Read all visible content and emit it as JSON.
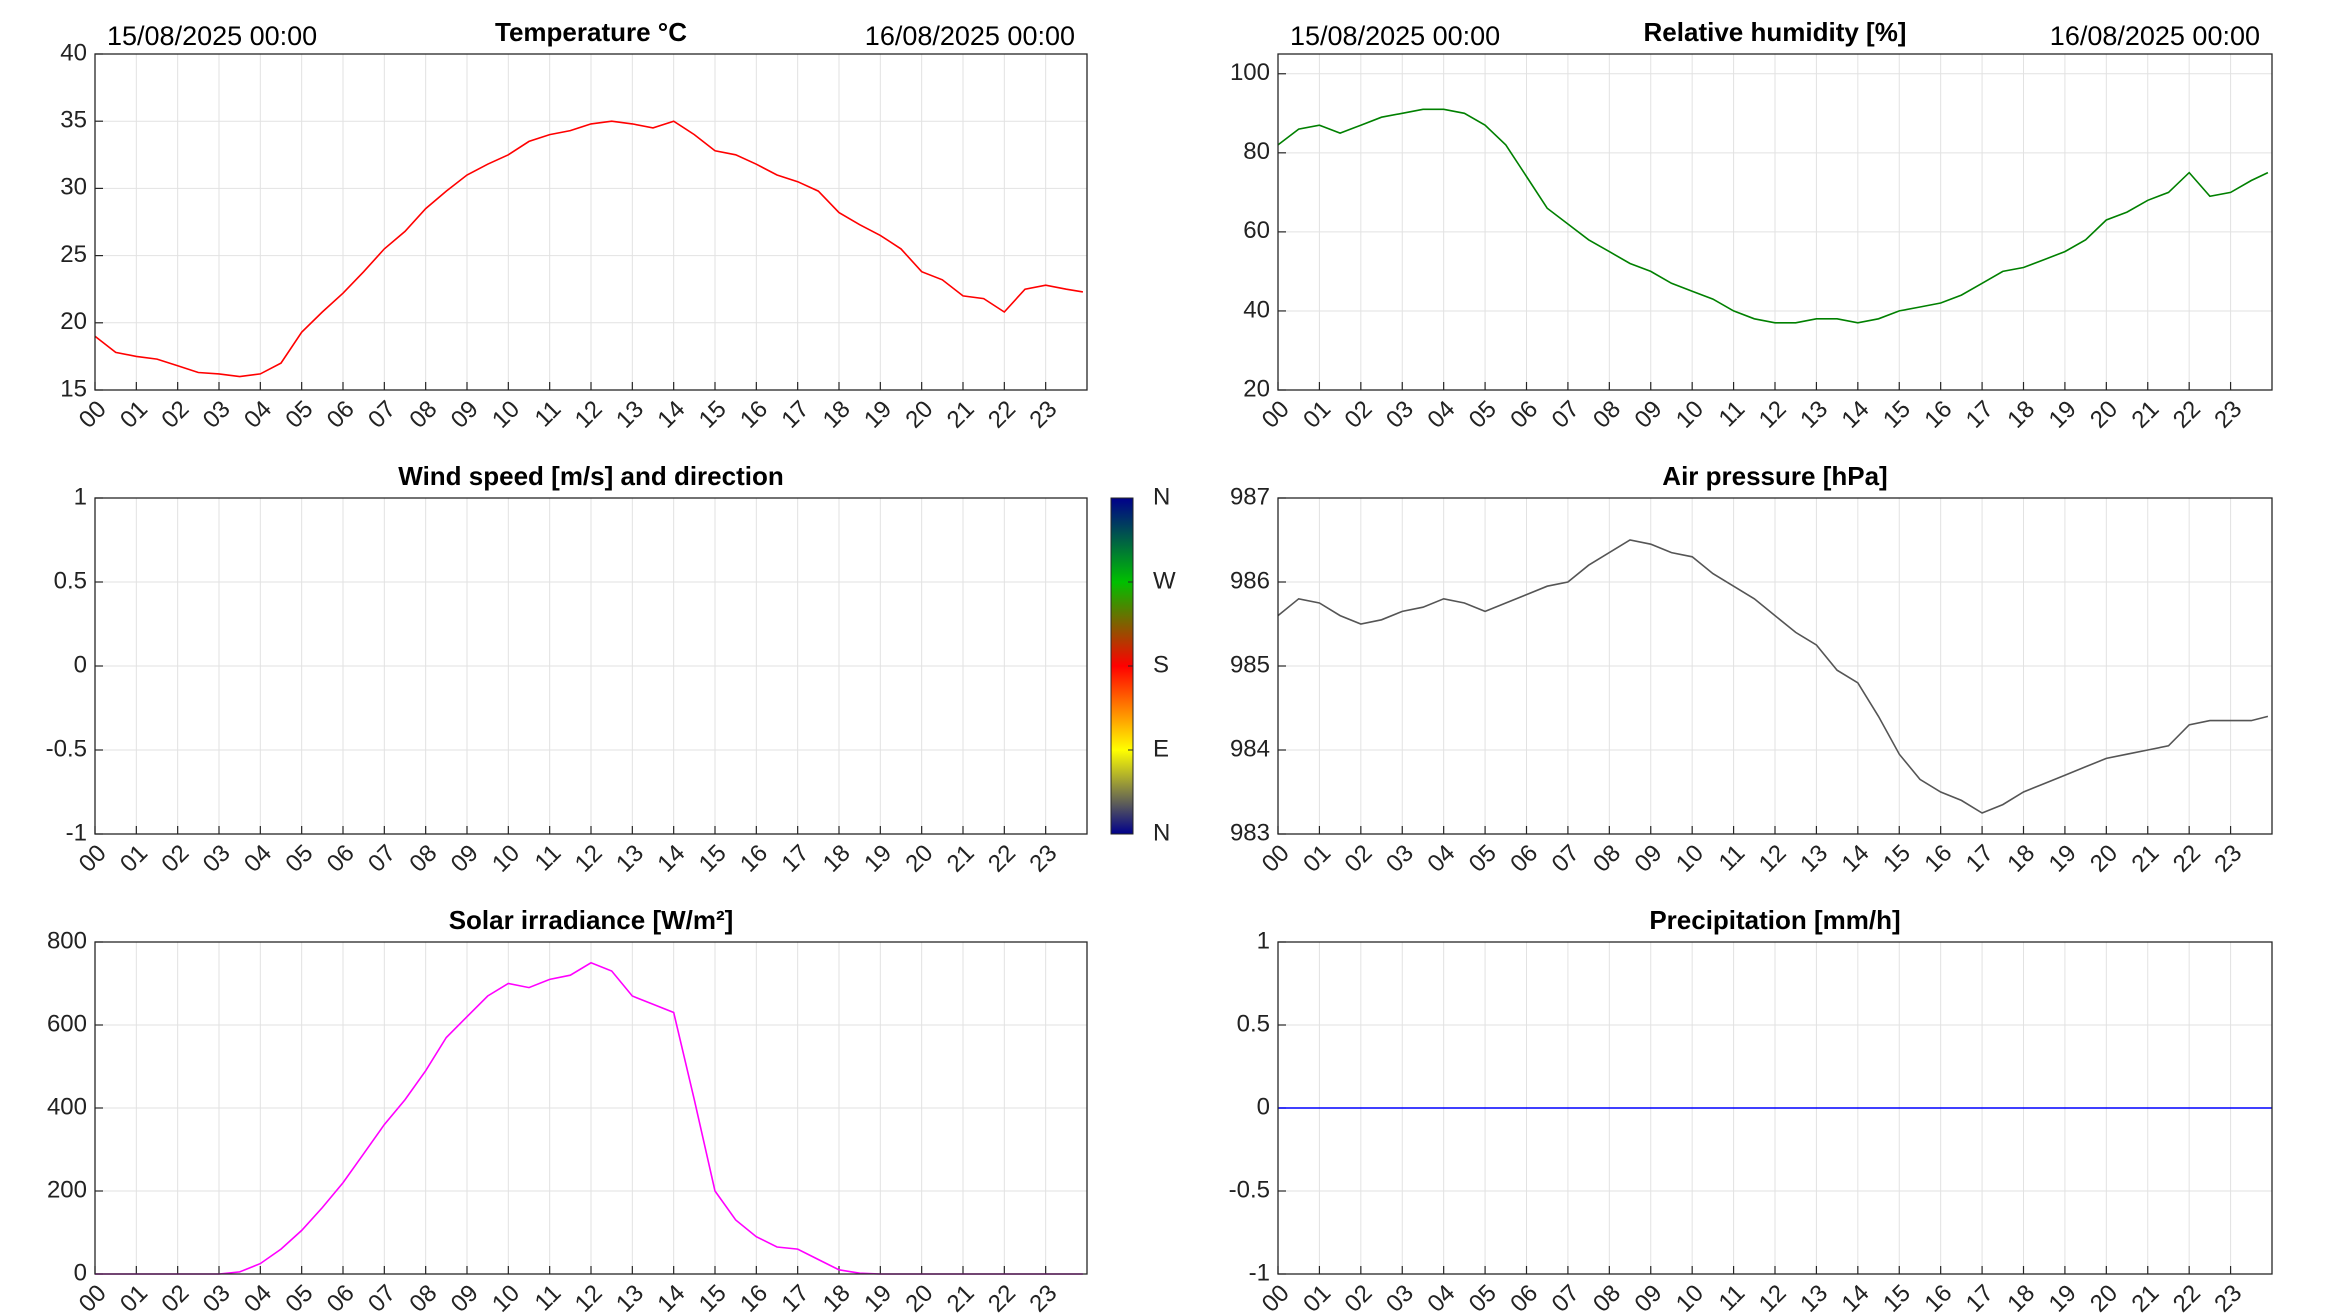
{
  "chart_data": [
    {
      "type": "line",
      "title": "Temperature °C",
      "annotations": [
        "15/08/2025 00:00",
        "16/08/2025 00:00"
      ],
      "color": "#ff0000",
      "x": [
        0,
        0.5,
        1,
        1.5,
        2,
        2.5,
        3,
        3.5,
        4,
        4.5,
        5,
        5.5,
        6,
        6.5,
        7,
        7.5,
        8,
        8.5,
        9,
        9.5,
        10,
        10.5,
        11,
        11.5,
        12,
        12.5,
        13,
        13.5,
        14,
        14.5,
        15,
        15.5,
        16,
        16.5,
        17,
        17.5,
        18,
        18.5,
        19,
        19.5,
        20,
        20.5,
        21,
        21.5,
        22,
        22.5,
        23,
        23.5,
        23.9
      ],
      "values": [
        19,
        17.8,
        17.5,
        17.3,
        16.8,
        16.3,
        16.2,
        16.0,
        16.2,
        17,
        19.3,
        20.8,
        22.2,
        23.8,
        25.5,
        26.8,
        28.5,
        29.8,
        31,
        31.8,
        32.5,
        33.5,
        34,
        34.3,
        34.8,
        35,
        34.8,
        34.5,
        35,
        34,
        32.8,
        32.5,
        31.8,
        31,
        30.5,
        29.8,
        28.2,
        27.3,
        26.5,
        25.5,
        23.8,
        23.2,
        22,
        21.8,
        20.8,
        22.5,
        22.8,
        22.5,
        22.3
      ],
      "xlim": [
        0,
        24
      ],
      "ylim": [
        15,
        40
      ],
      "yticks": [
        15,
        20,
        25,
        30,
        35,
        40
      ],
      "grid": true,
      "xticks": [
        {
          "value": 0,
          "label": "00"
        },
        {
          "value": 1,
          "label": "01"
        },
        {
          "value": 2,
          "label": "02"
        },
        {
          "value": 3,
          "label": "03"
        },
        {
          "value": 4,
          "label": "04"
        },
        {
          "value": 5,
          "label": "05"
        },
        {
          "value": 6,
          "label": "06"
        },
        {
          "value": 7,
          "label": "07"
        },
        {
          "value": 8,
          "label": "08"
        },
        {
          "value": 9,
          "label": "09"
        },
        {
          "value": 10,
          "label": "10"
        },
        {
          "value": 11,
          "label": "11"
        },
        {
          "value": 12,
          "label": "12"
        },
        {
          "value": 13,
          "label": "13"
        },
        {
          "value": 14,
          "label": "14"
        },
        {
          "value": 15,
          "label": "15"
        },
        {
          "value": 16,
          "label": "16"
        },
        {
          "value": 17,
          "label": "17"
        },
        {
          "value": 18,
          "label": "18"
        },
        {
          "value": 19,
          "label": "19"
        },
        {
          "value": 20,
          "label": "20"
        },
        {
          "value": 21,
          "label": "21"
        },
        {
          "value": 22,
          "label": "22"
        },
        {
          "value": 23,
          "label": "23"
        }
      ]
    },
    {
      "type": "line",
      "title": "Relative humidity [%]",
      "annotations": [
        "15/08/2025 00:00",
        "16/08/2025 00:00"
      ],
      "color": "#008000",
      "x": [
        0,
        0.5,
        1,
        1.5,
        2,
        2.5,
        3,
        3.5,
        4,
        4.5,
        5,
        5.5,
        6,
        6.5,
        7,
        7.5,
        8,
        8.5,
        9,
        9.5,
        10,
        10.5,
        11,
        11.5,
        12,
        12.5,
        13,
        13.5,
        14,
        14.5,
        15,
        15.5,
        16,
        16.5,
        17,
        17.5,
        18,
        18.5,
        19,
        19.5,
        20,
        20.5,
        21,
        21.5,
        22,
        22.5,
        23,
        23.5,
        23.9
      ],
      "values": [
        82,
        86,
        87,
        85,
        87,
        89,
        90,
        91,
        91,
        90,
        87,
        82,
        74,
        66,
        62,
        58,
        55,
        52,
        50,
        47,
        45,
        43,
        40,
        38,
        37,
        37,
        38,
        38,
        37,
        38,
        40,
        41,
        42,
        44,
        47,
        50,
        51,
        53,
        55,
        58,
        63,
        65,
        68,
        70,
        75,
        69,
        70,
        73,
        75
      ],
      "xlim": [
        0,
        24
      ],
      "ylim": [
        20,
        105
      ],
      "yticks": [
        20,
        40,
        60,
        80,
        100
      ],
      "grid": true,
      "xticks": [
        {
          "value": 0,
          "label": "00"
        },
        {
          "value": 1,
          "label": "01"
        },
        {
          "value": 2,
          "label": "02"
        },
        {
          "value": 3,
          "label": "03"
        },
        {
          "value": 4,
          "label": "04"
        },
        {
          "value": 5,
          "label": "05"
        },
        {
          "value": 6,
          "label": "06"
        },
        {
          "value": 7,
          "label": "07"
        },
        {
          "value": 8,
          "label": "08"
        },
        {
          "value": 9,
          "label": "09"
        },
        {
          "value": 10,
          "label": "10"
        },
        {
          "value": 11,
          "label": "11"
        },
        {
          "value": 12,
          "label": "12"
        },
        {
          "value": 13,
          "label": "13"
        },
        {
          "value": 14,
          "label": "14"
        },
        {
          "value": 15,
          "label": "15"
        },
        {
          "value": 16,
          "label": "16"
        },
        {
          "value": 17,
          "label": "17"
        },
        {
          "value": 18,
          "label": "18"
        },
        {
          "value": 19,
          "label": "19"
        },
        {
          "value": 20,
          "label": "20"
        },
        {
          "value": 21,
          "label": "21"
        },
        {
          "value": 22,
          "label": "22"
        },
        {
          "value": 23,
          "label": "23"
        }
      ]
    },
    {
      "type": "line",
      "title": "Wind speed [m/s] and direction",
      "color": "#000000",
      "x": [],
      "values": [],
      "xlim": [
        0,
        24
      ],
      "ylim": [
        -1,
        1
      ],
      "yticks": [
        -1,
        -0.5,
        0,
        0.5,
        1
      ],
      "grid": true,
      "colorbar": {
        "labels": [
          "N",
          "E",
          "S",
          "W",
          "N"
        ],
        "colors": [
          "#00008b",
          "#ffff00",
          "#ff0000",
          "#00c000",
          "#00008b"
        ]
      },
      "xticks": [
        {
          "value": 0,
          "label": "00"
        },
        {
          "value": 1,
          "label": "01"
        },
        {
          "value": 2,
          "label": "02"
        },
        {
          "value": 3,
          "label": "03"
        },
        {
          "value": 4,
          "label": "04"
        },
        {
          "value": 5,
          "label": "05"
        },
        {
          "value": 6,
          "label": "06"
        },
        {
          "value": 7,
          "label": "07"
        },
        {
          "value": 8,
          "label": "08"
        },
        {
          "value": 9,
          "label": "09"
        },
        {
          "value": 10,
          "label": "10"
        },
        {
          "value": 11,
          "label": "11"
        },
        {
          "value": 12,
          "label": "12"
        },
        {
          "value": 13,
          "label": "13"
        },
        {
          "value": 14,
          "label": "14"
        },
        {
          "value": 15,
          "label": "15"
        },
        {
          "value": 16,
          "label": "16"
        },
        {
          "value": 17,
          "label": "17"
        },
        {
          "value": 18,
          "label": "18"
        },
        {
          "value": 19,
          "label": "19"
        },
        {
          "value": 20,
          "label": "20"
        },
        {
          "value": 21,
          "label": "21"
        },
        {
          "value": 22,
          "label": "22"
        },
        {
          "value": 23,
          "label": "23"
        }
      ]
    },
    {
      "type": "line",
      "title": "Air pressure [hPa]",
      "color": "#555555",
      "x": [
        0,
        0.5,
        1,
        1.5,
        2,
        2.5,
        3,
        3.5,
        4,
        4.5,
        5,
        5.5,
        6,
        6.5,
        7,
        7.5,
        8,
        8.5,
        9,
        9.5,
        10,
        10.5,
        11,
        11.5,
        12,
        12.5,
        13,
        13.5,
        14,
        14.5,
        15,
        15.5,
        16,
        16.5,
        17,
        17.5,
        18,
        18.5,
        19,
        19.5,
        20,
        20.5,
        21,
        21.5,
        22,
        22.5,
        23,
        23.5,
        23.9
      ],
      "values": [
        985.6,
        985.8,
        985.75,
        985.6,
        985.5,
        985.55,
        985.65,
        985.7,
        985.8,
        985.75,
        985.65,
        985.75,
        985.85,
        985.95,
        986.0,
        986.2,
        986.35,
        986.5,
        986.45,
        986.35,
        986.3,
        986.1,
        985.95,
        985.8,
        985.6,
        985.4,
        985.25,
        984.95,
        984.8,
        984.4,
        983.95,
        983.65,
        983.5,
        983.4,
        983.25,
        983.35,
        983.5,
        983.6,
        983.7,
        983.8,
        983.9,
        983.95,
        984.0,
        984.05,
        984.3,
        984.35,
        984.35,
        984.35,
        984.4
      ],
      "xlim": [
        0,
        24
      ],
      "ylim": [
        983,
        987
      ],
      "yticks": [
        983,
        984,
        985,
        986,
        987
      ],
      "grid": true,
      "xticks": [
        {
          "value": 0,
          "label": "00"
        },
        {
          "value": 1,
          "label": "01"
        },
        {
          "value": 2,
          "label": "02"
        },
        {
          "value": 3,
          "label": "03"
        },
        {
          "value": 4,
          "label": "04"
        },
        {
          "value": 5,
          "label": "05"
        },
        {
          "value": 6,
          "label": "06"
        },
        {
          "value": 7,
          "label": "07"
        },
        {
          "value": 8,
          "label": "08"
        },
        {
          "value": 9,
          "label": "09"
        },
        {
          "value": 10,
          "label": "10"
        },
        {
          "value": 11,
          "label": "11"
        },
        {
          "value": 12,
          "label": "12"
        },
        {
          "value": 13,
          "label": "13"
        },
        {
          "value": 14,
          "label": "14"
        },
        {
          "value": 15,
          "label": "15"
        },
        {
          "value": 16,
          "label": "16"
        },
        {
          "value": 17,
          "label": "17"
        },
        {
          "value": 18,
          "label": "18"
        },
        {
          "value": 19,
          "label": "19"
        },
        {
          "value": 20,
          "label": "20"
        },
        {
          "value": 21,
          "label": "21"
        },
        {
          "value": 22,
          "label": "22"
        },
        {
          "value": 23,
          "label": "23"
        }
      ]
    },
    {
      "type": "line",
      "title": "Solar irradiance [W/m²]",
      "color": "#ff00ff",
      "x": [
        0,
        0.5,
        1,
        1.5,
        2,
        2.5,
        3,
        3.5,
        4,
        4.5,
        5,
        5.5,
        6,
        6.5,
        7,
        7.5,
        8,
        8.5,
        9,
        9.5,
        10,
        10.5,
        11,
        11.5,
        12,
        12.5,
        13,
        13.5,
        14,
        14.5,
        15,
        15.5,
        16,
        16.5,
        17,
        17.5,
        18,
        18.5,
        19,
        19.5,
        20,
        20.5,
        21,
        21.5,
        22,
        22.5,
        23,
        23.5,
        23.9
      ],
      "values": [
        0,
        0,
        0,
        0,
        0,
        0,
        0,
        5,
        25,
        60,
        105,
        160,
        220,
        290,
        360,
        420,
        490,
        570,
        620,
        670,
        700,
        690,
        710,
        720,
        750,
        730,
        670,
        650,
        630,
        420,
        200,
        130,
        90,
        65,
        60,
        35,
        10,
        2,
        0,
        0,
        0,
        0,
        0,
        0,
        0,
        0,
        0,
        0,
        0
      ],
      "xlim": [
        0,
        24
      ],
      "ylim": [
        0,
        800
      ],
      "yticks": [
        0,
        200,
        400,
        600,
        800
      ],
      "grid": true,
      "xticks": [
        {
          "value": 0,
          "label": "00"
        },
        {
          "value": 1,
          "label": "01"
        },
        {
          "value": 2,
          "label": "02"
        },
        {
          "value": 3,
          "label": "03"
        },
        {
          "value": 4,
          "label": "04"
        },
        {
          "value": 5,
          "label": "05"
        },
        {
          "value": 6,
          "label": "06"
        },
        {
          "value": 7,
          "label": "07"
        },
        {
          "value": 8,
          "label": "08"
        },
        {
          "value": 9,
          "label": "09"
        },
        {
          "value": 10,
          "label": "10"
        },
        {
          "value": 11,
          "label": "11"
        },
        {
          "value": 12,
          "label": "12"
        },
        {
          "value": 13,
          "label": "13"
        },
        {
          "value": 14,
          "label": "14"
        },
        {
          "value": 15,
          "label": "15"
        },
        {
          "value": 16,
          "label": "16"
        },
        {
          "value": 17,
          "label": "17"
        },
        {
          "value": 18,
          "label": "18"
        },
        {
          "value": 19,
          "label": "19"
        },
        {
          "value": 20,
          "label": "20"
        },
        {
          "value": 21,
          "label": "21"
        },
        {
          "value": 22,
          "label": "22"
        },
        {
          "value": 23,
          "label": "23"
        }
      ]
    },
    {
      "type": "line",
      "title": "Precipitation [mm/h]",
      "color": "#0000ff",
      "x": [
        0,
        24
      ],
      "values": [
        0,
        0
      ],
      "xlim": [
        0,
        24
      ],
      "ylim": [
        -1,
        1
      ],
      "yticks": [
        -1,
        -0.5,
        0,
        0.5,
        1
      ],
      "grid": true,
      "xticks": [
        {
          "value": 0,
          "label": "00"
        },
        {
          "value": 1,
          "label": "01"
        },
        {
          "value": 2,
          "label": "02"
        },
        {
          "value": 3,
          "label": "03"
        },
        {
          "value": 4,
          "label": "04"
        },
        {
          "value": 5,
          "label": "05"
        },
        {
          "value": 6,
          "label": "06"
        },
        {
          "value": 7,
          "label": "07"
        },
        {
          "value": 8,
          "label": "08"
        },
        {
          "value": 9,
          "label": "09"
        },
        {
          "value": 10,
          "label": "10"
        },
        {
          "value": 11,
          "label": "11"
        },
        {
          "value": 12,
          "label": "12"
        },
        {
          "value": 13,
          "label": "13"
        },
        {
          "value": 14,
          "label": "14"
        },
        {
          "value": 15,
          "label": "15"
        },
        {
          "value": 16,
          "label": "16"
        },
        {
          "value": 17,
          "label": "17"
        },
        {
          "value": 18,
          "label": "18"
        },
        {
          "value": 19,
          "label": "19"
        },
        {
          "value": 20,
          "label": "20"
        },
        {
          "value": 21,
          "label": "21"
        },
        {
          "value": 22,
          "label": "22"
        },
        {
          "value": 23,
          "label": "23"
        }
      ]
    }
  ]
}
